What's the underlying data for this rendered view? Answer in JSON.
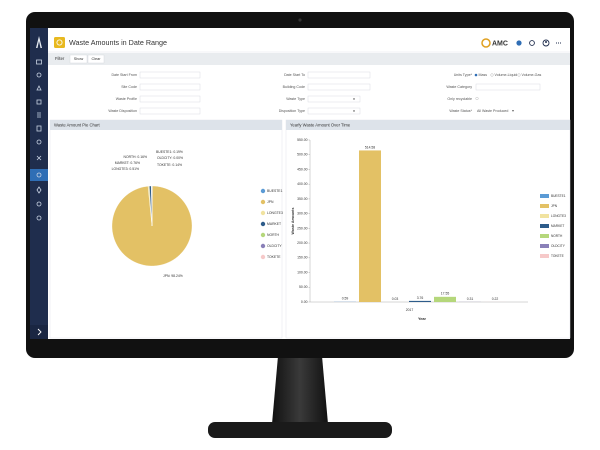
{
  "header": {
    "title": "Waste Amounts in Date Range",
    "brand": "AMC"
  },
  "toolbar": {
    "label": "Filter",
    "buttons": [
      "Show",
      "Clear"
    ]
  },
  "form": {
    "fields": [
      "Date Start From",
      "Date Start To",
      "Units Type*",
      "Site Code",
      "Building Code",
      "Waste Category",
      "Waste Profile",
      "Waste Type",
      "Only recyclable",
      "Waste Disposition",
      "Disposition Type",
      "Waste Status*"
    ],
    "unit_options": [
      "Mass",
      "Volume-Liquid",
      "Volume-Gas"
    ],
    "waste_status_value": "All Waste Produced"
  },
  "chart_data": [
    {
      "type": "pie",
      "title": "Waste Amount Pie Chart",
      "categories": [
        "BUESTE1",
        "JPN",
        "LONGTE3",
        "MARKET",
        "NORTH",
        "OLDCITY",
        "TOKETE"
      ],
      "values": [
        0.19,
        98.24,
        0.51,
        0.76,
        0.16,
        0,
        0.14
      ],
      "value_labels": [
        "BUESTE1: 0.19%",
        "JPN: 98.24%",
        "LONGTE3: 0.51%",
        "MARKET: 0.76%",
        "NORTH: 0.16%",
        "OLDCITY: 0.00%",
        "TOKETE: 0.14%"
      ],
      "colors": [
        "#5b9bd5",
        "#e3c165",
        "#f1e3a0",
        "#2e5c8a",
        "#b5d77b",
        "#8a80b8",
        "#f6c9c9"
      ]
    },
    {
      "type": "bar",
      "title": "Yearly Waste Amount Over Time",
      "x_label": "Year",
      "y_label": "Waste Amounts",
      "categories": [
        "2017"
      ],
      "series": [
        {
          "name": "BUESTE1",
          "color": "#5b9bd5",
          "values": [
            0.59
          ]
        },
        {
          "name": "JPN",
          "color": "#e3c165",
          "values": [
            514.58
          ]
        },
        {
          "name": "LONGTE3",
          "color": "#f1e3a0",
          "values": [
            0.03
          ]
        },
        {
          "name": "MARKET",
          "color": "#2e5c8a",
          "values": [
            3.76
          ]
        },
        {
          "name": "NORTH",
          "color": "#b5d77b",
          "values": [
            17.55
          ]
        },
        {
          "name": "OLDCITY",
          "color": "#8a80b8",
          "values": [
            0.31
          ]
        },
        {
          "name": "TOKETE",
          "color": "#f6c9c9",
          "values": [
            0.22
          ]
        }
      ],
      "ylim": [
        0,
        550
      ],
      "yticks": [
        {
          "value": 0,
          "label": "0.00"
        },
        {
          "value": 50,
          "label": "50.00"
        },
        {
          "value": 100,
          "label": "100.00"
        },
        {
          "value": 150,
          "label": "150.00"
        },
        {
          "value": 200,
          "label": "200.00"
        },
        {
          "value": 250,
          "label": "250.00"
        },
        {
          "value": 300,
          "label": "300.00"
        },
        {
          "value": 350,
          "label": "350.00"
        },
        {
          "value": 400,
          "label": "400.00"
        },
        {
          "value": 450,
          "label": "450.00"
        },
        {
          "value": 500,
          "label": "500.00"
        },
        {
          "value": 550,
          "label": "550.00"
        }
      ]
    }
  ]
}
